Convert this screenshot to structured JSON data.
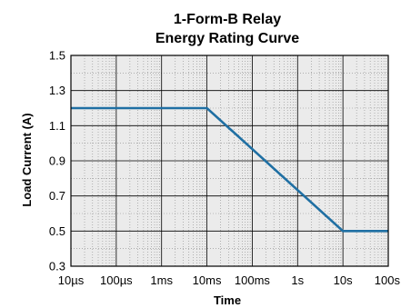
{
  "chart_data": {
    "type": "line",
    "title": [
      "1-Form-B Relay",
      "Energy Rating Curve"
    ],
    "xlabel": "Time",
    "ylabel": "Load Current (A)",
    "x_scale": "log",
    "x_unit": "s",
    "xlim": [
      1e-05,
      100
    ],
    "ylim": [
      0.3,
      1.5
    ],
    "x_ticks": [
      1e-05,
      0.0001,
      0.001,
      0.01,
      0.1,
      1,
      10,
      100
    ],
    "x_tick_labels": [
      "10µs",
      "100µs",
      "1ms",
      "10ms",
      "100ms",
      "1s",
      "10s",
      "100s"
    ],
    "y_ticks": [
      0.3,
      0.5,
      0.7,
      0.9,
      1.1,
      1.3,
      1.5
    ],
    "y_tick_labels": [
      "0.3",
      "0.5",
      "0.7",
      "0.9",
      "1.1",
      "1.3",
      "1.5"
    ],
    "grid": true,
    "plot_background": "#ebebeb",
    "series": [
      {
        "color": "#1f6fa3",
        "x": [
          1e-05,
          0.01,
          10,
          100
        ],
        "y": [
          1.2,
          1.2,
          0.5,
          0.5
        ]
      }
    ]
  }
}
